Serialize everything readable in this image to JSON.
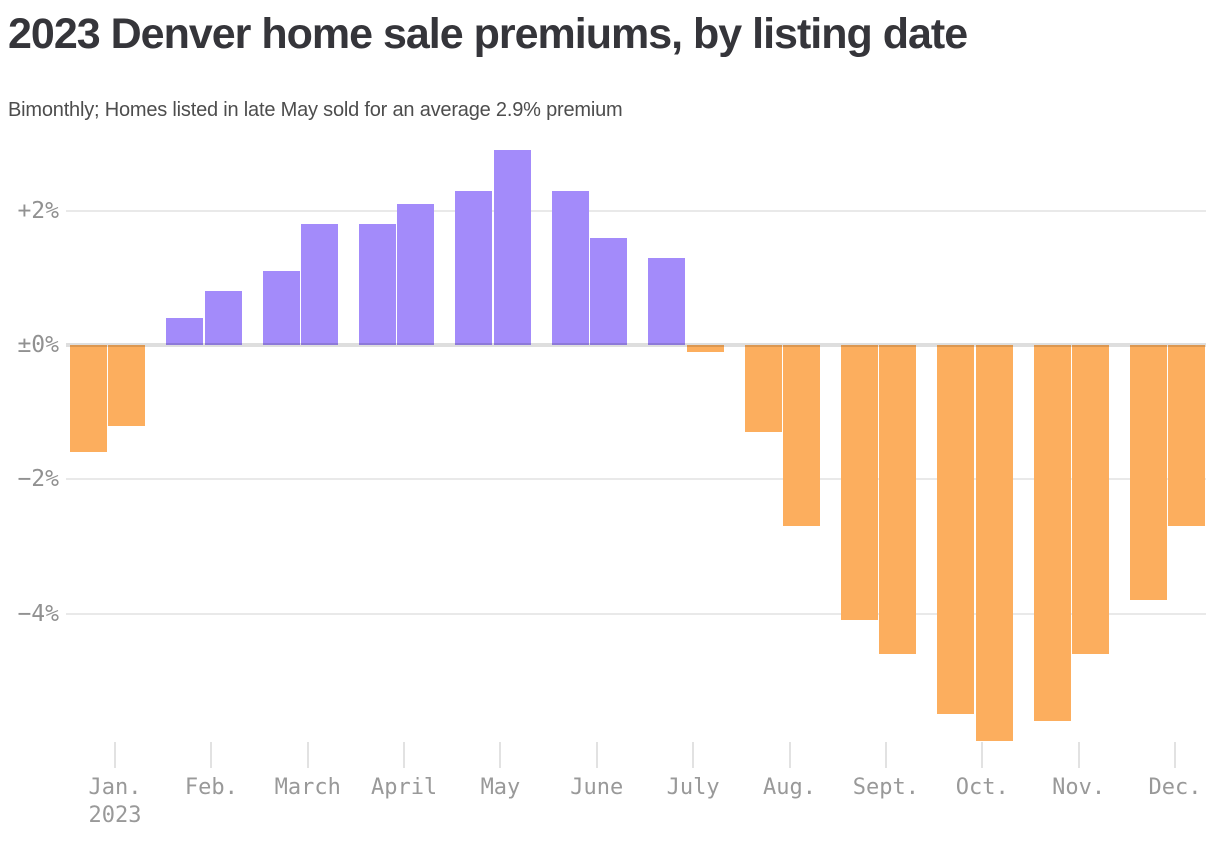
{
  "chart_data": {
    "type": "bar",
    "title": "2023 Denver home sale premiums, by listing date",
    "subtitle": "Bimonthly; Homes listed in late May sold for an average 2.9% premium",
    "unit": "%",
    "frequency": "bimonthly (two bars per month: first half, second half)",
    "categories": [
      "Jan.",
      "Feb.",
      "March",
      "April",
      "May",
      "June",
      "July",
      "Aug.",
      "Sept.",
      "Oct.",
      "Nov.",
      "Dec."
    ],
    "first_category_year_line": "2023",
    "months": [
      {
        "label": "Jan.",
        "values": [
          -1.6,
          -1.2
        ]
      },
      {
        "label": "Feb.",
        "values": [
          0.4,
          0.8
        ]
      },
      {
        "label": "March",
        "values": [
          1.1,
          1.8
        ]
      },
      {
        "label": "April",
        "values": [
          1.8,
          2.1
        ]
      },
      {
        "label": "May",
        "values": [
          2.3,
          2.9
        ]
      },
      {
        "label": "June",
        "values": [
          2.3,
          1.6
        ]
      },
      {
        "label": "July",
        "values": [
          1.3,
          -0.1
        ]
      },
      {
        "label": "Aug.",
        "values": [
          -1.3,
          -2.7
        ]
      },
      {
        "label": "Sept.",
        "values": [
          -4.1,
          -4.6
        ]
      },
      {
        "label": "Oct.",
        "values": [
          -5.5,
          -5.9
        ]
      },
      {
        "label": "Nov.",
        "values": [
          -5.6,
          -4.6
        ]
      },
      {
        "label": "Dec.",
        "values": [
          -3.8,
          -2.7
        ]
      }
    ],
    "y_axis": {
      "ticks": [
        {
          "value": 2,
          "label": "+2%"
        },
        {
          "value": 0,
          "label": "±0%"
        },
        {
          "value": -2,
          "label": "−2%"
        },
        {
          "value": -4,
          "label": "−4%"
        }
      ],
      "ylim": [
        -6.2,
        3.1
      ],
      "grid": true,
      "baseline_value": 0
    },
    "legend": "none",
    "colors": {
      "positive": "#a38bfa",
      "negative": "#fcae5e",
      "grid": "#e9e9e9",
      "baseline": "#d6d6d6",
      "axis_text": "#999999",
      "title_text": "#35353a",
      "subtitle_text": "#4d4d4d"
    }
  }
}
